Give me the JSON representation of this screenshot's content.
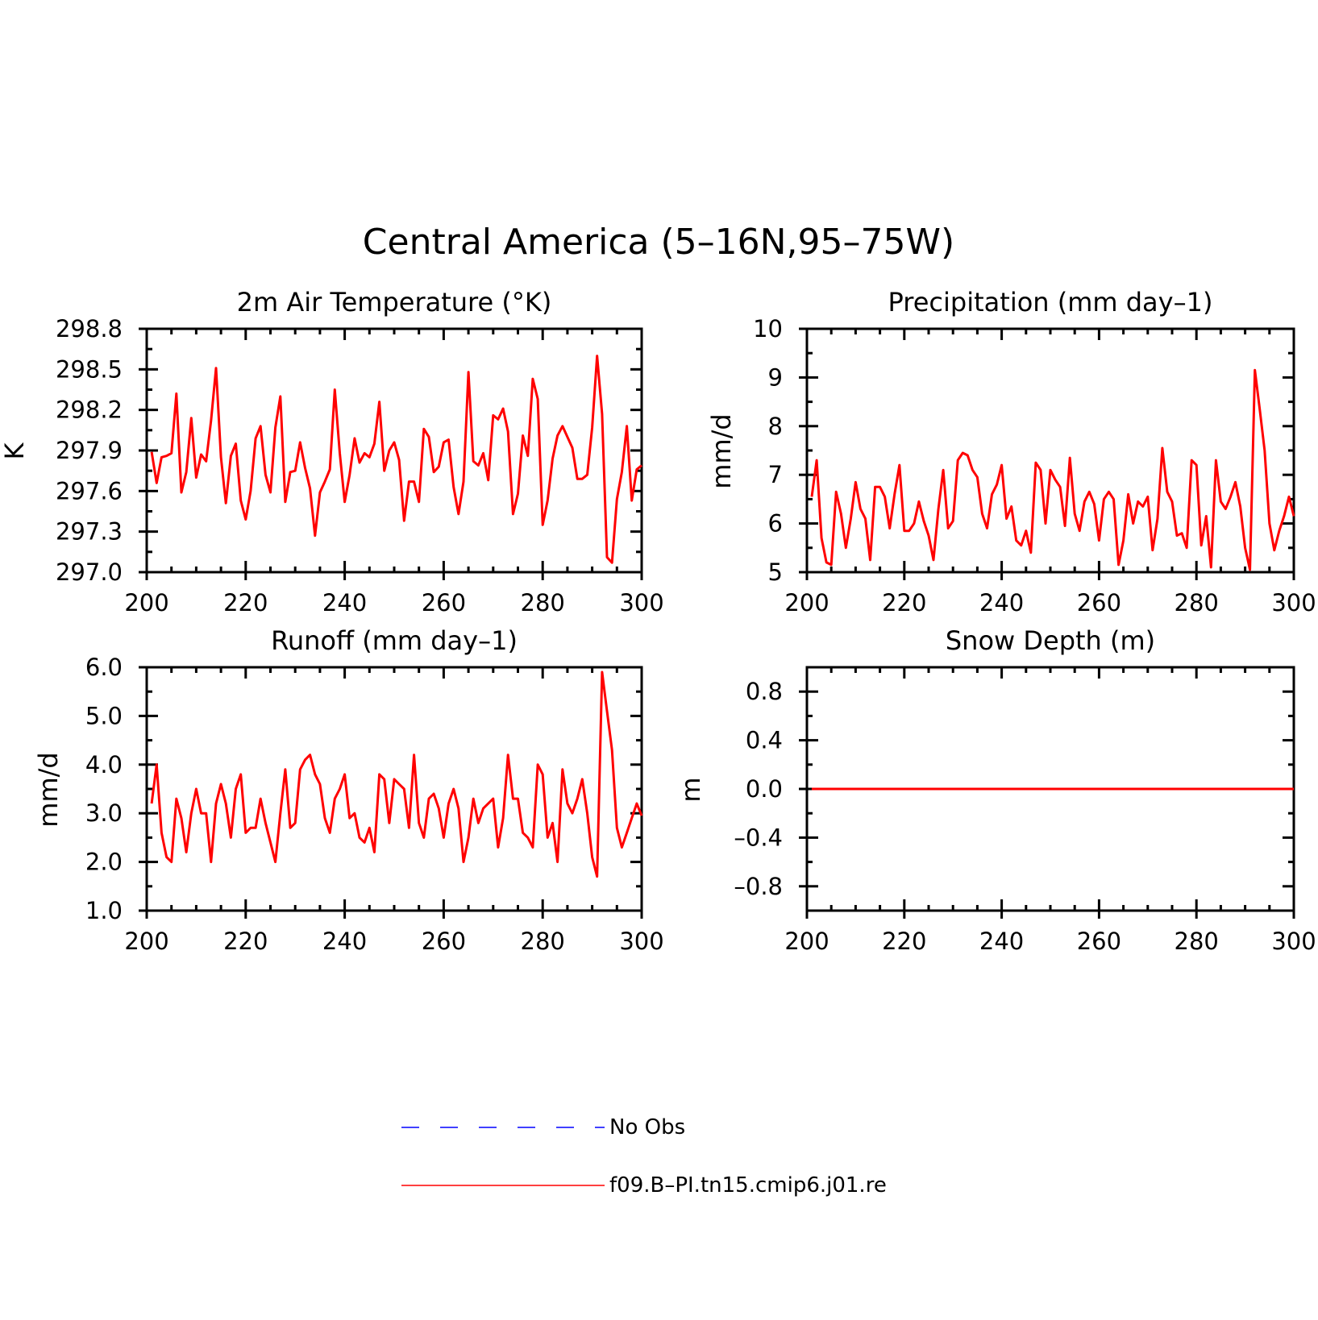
{
  "figure": {
    "title": "Central America (5–16N,95–75W)"
  },
  "legend": [
    {
      "label": "No Obs",
      "color": "#0000ff",
      "style": "dashed"
    },
    {
      "label": "f09.B–PI.tn15.cmip6.j01.re",
      "color": "#ff0000",
      "style": "solid"
    }
  ],
  "chart_data": [
    {
      "type": "line",
      "title": "2m Air Temperature (°K)",
      "ylabel": "K",
      "xlim": [
        200,
        300
      ],
      "ylim": [
        297.0,
        298.8
      ],
      "xticks": [
        200,
        220,
        240,
        260,
        280,
        300
      ],
      "xtick_labels": [
        "200",
        "220",
        "240",
        "260",
        "280",
        "300"
      ],
      "yticks": [
        297.0,
        297.3,
        297.6,
        297.9,
        298.2,
        298.5,
        298.8
      ],
      "ytick_labels": [
        "297.0",
        "297.3",
        "297.6",
        "297.9",
        "298.2",
        "298.5",
        "298.8"
      ],
      "grid": false,
      "series": [
        {
          "name": "f09.B–PI.tn15.cmip6.j01.re",
          "color": "#ff0000",
          "x_start": 201,
          "values": [
            297.89,
            297.66,
            297.85,
            297.86,
            297.88,
            298.32,
            297.59,
            297.74,
            298.14,
            297.7,
            297.87,
            297.82,
            298.12,
            298.51,
            297.85,
            297.51,
            297.86,
            297.95,
            297.53,
            297.39,
            297.6,
            297.99,
            298.08,
            297.72,
            297.59,
            298.07,
            298.3,
            297.52,
            297.74,
            297.75,
            297.96,
            297.77,
            297.62,
            297.27,
            297.59,
            297.67,
            297.76,
            298.35,
            297.88,
            297.52,
            297.72,
            297.99,
            297.81,
            297.88,
            297.85,
            297.95,
            298.26,
            297.75,
            297.9,
            297.96,
            297.83,
            297.38,
            297.67,
            297.67,
            297.52,
            298.06,
            298.0,
            297.74,
            297.78,
            297.96,
            297.98,
            297.63,
            297.43,
            297.67,
            298.48,
            297.82,
            297.79,
            297.88,
            297.68,
            298.16,
            298.13,
            298.21,
            298.04,
            297.43,
            297.58,
            298.01,
            297.86,
            298.43,
            298.28,
            297.35,
            297.53,
            297.84,
            298.01,
            298.08,
            298.0,
            297.92,
            297.69,
            297.69,
            297.72,
            298.07,
            298.6,
            298.17,
            297.11,
            297.07,
            297.54,
            297.74,
            298.08,
            297.53,
            297.76,
            297.79
          ]
        }
      ]
    },
    {
      "type": "line",
      "title": "Precipitation (mm day–1)",
      "ylabel": "mm/d",
      "xlim": [
        200,
        300
      ],
      "ylim": [
        5,
        10
      ],
      "xticks": [
        200,
        220,
        240,
        260,
        280,
        300
      ],
      "xtick_labels": [
        "200",
        "220",
        "240",
        "260",
        "280",
        "300"
      ],
      "yticks": [
        5,
        6,
        7,
        8,
        9,
        10
      ],
      "ytick_labels": [
        "5",
        "6",
        "7",
        "8",
        "9",
        "10"
      ],
      "grid": false,
      "series": [
        {
          "name": "f09.B–PI.tn15.cmip6.j01.re",
          "color": "#ff0000",
          "x_start": 201,
          "values": [
            6.55,
            7.3,
            5.7,
            5.2,
            5.15,
            6.65,
            6.2,
            5.5,
            6.1,
            6.85,
            6.3,
            6.1,
            5.25,
            6.75,
            6.75,
            6.55,
            5.9,
            6.6,
            7.2,
            5.85,
            5.85,
            6.0,
            6.45,
            6.05,
            5.75,
            5.25,
            6.3,
            7.1,
            5.9,
            6.05,
            7.3,
            7.45,
            7.4,
            7.1,
            6.95,
            6.2,
            5.9,
            6.6,
            6.8,
            7.2,
            6.1,
            6.35,
            5.65,
            5.55,
            5.85,
            5.4,
            7.25,
            7.1,
            6.0,
            7.1,
            6.9,
            6.75,
            5.95,
            7.35,
            6.2,
            5.85,
            6.45,
            6.65,
            6.4,
            5.65,
            6.5,
            6.65,
            6.5,
            5.15,
            5.65,
            6.6,
            6.0,
            6.45,
            6.35,
            6.55,
            5.45,
            6.1,
            7.55,
            6.65,
            6.45,
            5.75,
            5.8,
            5.5,
            7.3,
            7.2,
            5.55,
            6.15,
            5.1,
            7.3,
            6.45,
            6.3,
            6.55,
            6.85,
            6.35,
            5.5,
            5.05,
            9.15,
            8.35,
            7.5,
            6.0,
            5.45,
            5.85,
            6.15,
            6.55,
            6.15
          ]
        }
      ]
    },
    {
      "type": "line",
      "title": "Runoff (mm day–1)",
      "ylabel": "mm/d",
      "xlim": [
        200,
        300
      ],
      "ylim": [
        1.0,
        6.0
      ],
      "xticks": [
        200,
        220,
        240,
        260,
        280,
        300
      ],
      "xtick_labels": [
        "200",
        "220",
        "240",
        "260",
        "280",
        "300"
      ],
      "yticks": [
        1.0,
        2.0,
        3.0,
        4.0,
        5.0,
        6.0
      ],
      "ytick_labels": [
        "1.0",
        "2.0",
        "3.0",
        "4.0",
        "5.0",
        "6.0"
      ],
      "grid": false,
      "series": [
        {
          "name": "f09.B–PI.tn15.cmip6.j01.re",
          "color": "#ff0000",
          "x_start": 201,
          "values": [
            3.2,
            4.0,
            2.6,
            2.1,
            2.0,
            3.3,
            2.9,
            2.2,
            3.0,
            3.5,
            3.0,
            3.0,
            2.0,
            3.2,
            3.6,
            3.2,
            2.5,
            3.5,
            3.8,
            2.6,
            2.7,
            2.7,
            3.3,
            2.8,
            2.4,
            2.0,
            3.0,
            3.9,
            2.7,
            2.8,
            3.9,
            4.1,
            4.2,
            3.8,
            3.6,
            2.9,
            2.6,
            3.3,
            3.5,
            3.8,
            2.9,
            3.0,
            2.5,
            2.4,
            2.7,
            2.2,
            3.8,
            3.7,
            2.8,
            3.7,
            3.6,
            3.5,
            2.7,
            4.2,
            2.8,
            2.5,
            3.3,
            3.4,
            3.1,
            2.5,
            3.2,
            3.5,
            3.1,
            2.0,
            2.5,
            3.3,
            2.8,
            3.1,
            3.2,
            3.3,
            2.3,
            2.9,
            4.2,
            3.3,
            3.3,
            2.6,
            2.5,
            2.3,
            4.0,
            3.8,
            2.5,
            2.8,
            2.0,
            3.9,
            3.2,
            3.0,
            3.3,
            3.7,
            3.0,
            2.1,
            1.7,
            5.9,
            5.1,
            4.3,
            2.7,
            2.3,
            2.6,
            2.9,
            3.2,
            2.95
          ]
        }
      ]
    },
    {
      "type": "line",
      "title": "Snow Depth (m)",
      "ylabel": "m",
      "xlim": [
        200,
        300
      ],
      "ylim": [
        -1.0,
        1.0
      ],
      "xticks": [
        200,
        220,
        240,
        260,
        280,
        300
      ],
      "xtick_labels": [
        "200",
        "220",
        "240",
        "260",
        "280",
        "300"
      ],
      "yticks": [
        -0.8,
        -0.4,
        0.0,
        0.4,
        0.8
      ],
      "ytick_labels": [
        "–0.8",
        "–0.4",
        "0.0",
        "0.4",
        "0.8"
      ],
      "grid": false,
      "series": [
        {
          "name": "f09.B–PI.tn15.cmip6.j01.re",
          "color": "#ff0000",
          "x_start": 201,
          "constant": 0.0,
          "count": 100
        }
      ]
    }
  ]
}
